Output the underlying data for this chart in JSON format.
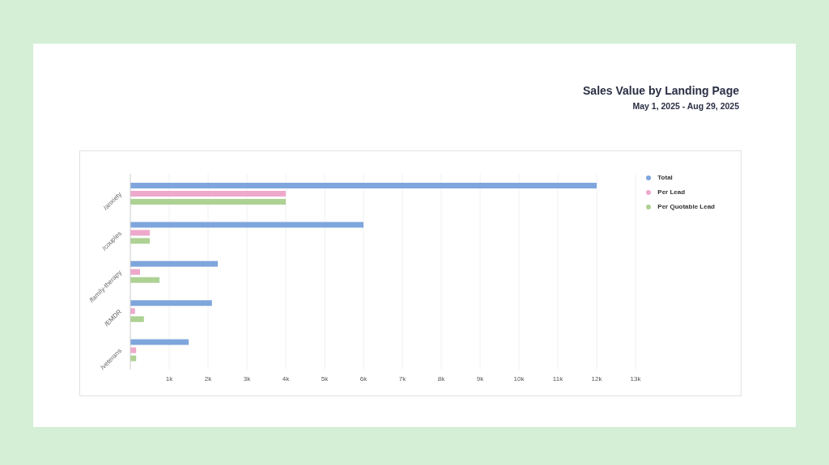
{
  "chart_data": {
    "type": "bar",
    "orientation": "horizontal",
    "title": "Sales Value by Landing Page",
    "subtitle": "May 1, 2025 - Aug 29, 2025",
    "categories": [
      "/anxiety",
      "/couples",
      "/family-therapy",
      "/EMDR",
      "/veterans"
    ],
    "series": [
      {
        "name": "Total",
        "color": "#7fa6dc",
        "values": [
          12000,
          6000,
          2250,
          2100,
          1500
        ]
      },
      {
        "name": "Per Lead",
        "color": "#eea8cc",
        "values": [
          4000,
          500,
          250,
          120,
          150
        ]
      },
      {
        "name": "Per Quotable Lead",
        "color": "#aed194",
        "values": [
          4000,
          500,
          750,
          350,
          150
        ]
      }
    ],
    "xlim": [
      0,
      13000
    ],
    "xticks": [
      {
        "value": 1000,
        "label": "1k"
      },
      {
        "value": 2000,
        "label": "2k"
      },
      {
        "value": 3000,
        "label": "3k"
      },
      {
        "value": 4000,
        "label": "4k"
      },
      {
        "value": 5000,
        "label": "5k"
      },
      {
        "value": 6000,
        "label": "6k"
      },
      {
        "value": 7000,
        "label": "7k"
      },
      {
        "value": 8000,
        "label": "8k"
      },
      {
        "value": 9000,
        "label": "9k"
      },
      {
        "value": 10000,
        "label": "10k"
      },
      {
        "value": 11000,
        "label": "11k"
      },
      {
        "value": 12000,
        "label": "12k"
      },
      {
        "value": 13000,
        "label": "13k"
      }
    ],
    "grid": "x",
    "legend": "top right"
  }
}
